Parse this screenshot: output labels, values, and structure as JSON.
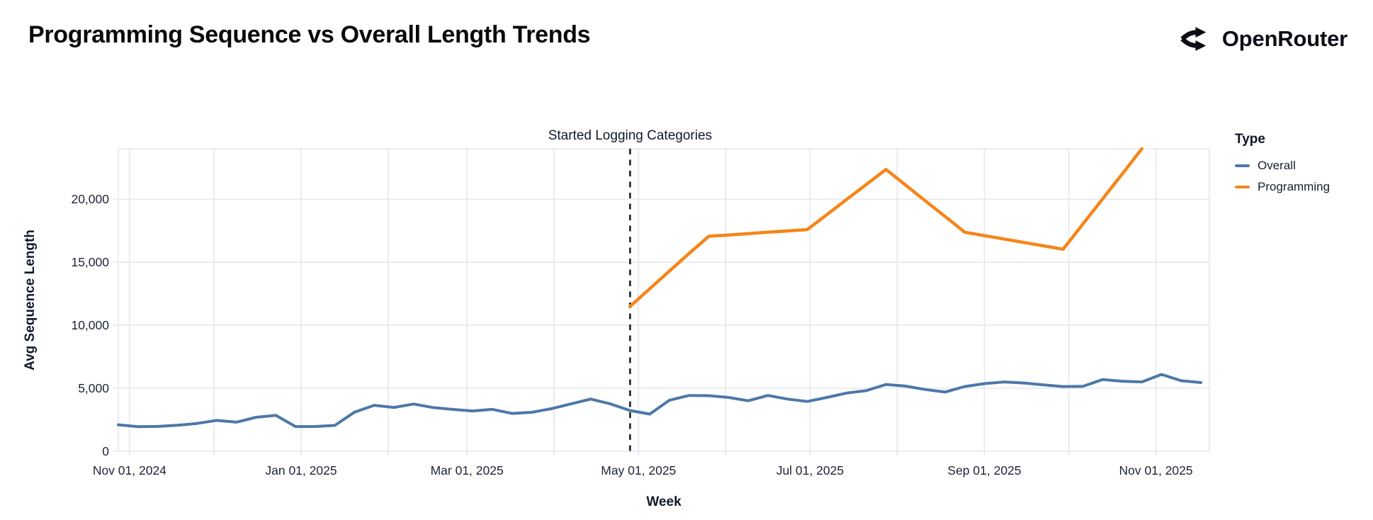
{
  "header": {
    "title": "Programming Sequence vs Overall Length Trends",
    "brand": "OpenRouter"
  },
  "colors": {
    "overall": "#4c78a8",
    "programming": "#f58518",
    "grid": "#e5e5ee",
    "axis_text": "#1d2433",
    "annotation_rule": "#14181f"
  },
  "chart_data": {
    "type": "line",
    "title": "Programming Sequence vs Overall Length Trends",
    "xlabel": "Week",
    "ylabel": "Avg Sequence Length",
    "ylim": [
      0,
      24000
    ],
    "y_ticks": [
      0,
      5000,
      10000,
      15000,
      20000
    ],
    "x_domain": [
      "Oct 28, 2024",
      "Nov 20, 2025"
    ],
    "x_month_gridlines": [
      "Nov 01, 2024",
      "Dec 01, 2024",
      "Jan 01, 2025",
      "Feb 01, 2025",
      "Mar 01, 2025",
      "Apr 01, 2025",
      "May 01, 2025",
      "Jun 01, 2025",
      "Jul 01, 2025",
      "Aug 01, 2025",
      "Sep 01, 2025",
      "Oct 01, 2025",
      "Nov 01, 2025"
    ],
    "x_tick_labels": [
      "Nov 01, 2024",
      "Jan 01, 2025",
      "Mar 01, 2025",
      "May 01, 2025",
      "Jul 01, 2025",
      "Sep 01, 2025",
      "Nov 01, 2025"
    ],
    "grid": true,
    "legend_position": "right",
    "annotation": {
      "text": "Started Logging Categories",
      "date": "Apr 28, 2025"
    },
    "legend": {
      "title": "Type",
      "items": [
        {
          "label": "Overall",
          "color": "#4c78a8"
        },
        {
          "label": "Programming",
          "color": "#f58518"
        }
      ]
    },
    "series": [
      {
        "name": "Overall",
        "color": "#4c78a8",
        "points": [
          [
            "Oct 28, 2024",
            2100
          ],
          [
            "Nov 4, 2024",
            1950
          ],
          [
            "Nov 11, 2024",
            1975
          ],
          [
            "Nov 18, 2024",
            2060
          ],
          [
            "Nov 25, 2024",
            2210
          ],
          [
            "Dec 2, 2024",
            2450
          ],
          [
            "Dec 9, 2024",
            2310
          ],
          [
            "Dec 16, 2024",
            2700
          ],
          [
            "Dec 23, 2024",
            2850
          ],
          [
            "Dec 30, 2024",
            1960
          ],
          [
            "Jan 6, 2025",
            1970
          ],
          [
            "Jan 13, 2025",
            2050
          ],
          [
            "Jan 20, 2025",
            3100
          ],
          [
            "Jan 27, 2025",
            3650
          ],
          [
            "Feb 3, 2025",
            3480
          ],
          [
            "Feb 10, 2025",
            3750
          ],
          [
            "Feb 17, 2025",
            3470
          ],
          [
            "Feb 24, 2025",
            3320
          ],
          [
            "Mar 3, 2025",
            3200
          ],
          [
            "Mar 10, 2025",
            3330
          ],
          [
            "Mar 17, 2025",
            3000
          ],
          [
            "Mar 24, 2025",
            3090
          ],
          [
            "Mar 31, 2025",
            3380
          ],
          [
            "Apr 7, 2025",
            3760
          ],
          [
            "Apr 14, 2025",
            4140
          ],
          [
            "Apr 21, 2025",
            3760
          ],
          [
            "Apr 28, 2025",
            3230
          ],
          [
            "May 5, 2025",
            2950
          ],
          [
            "May 12, 2025",
            4050
          ],
          [
            "May 19, 2025",
            4430
          ],
          [
            "May 26, 2025",
            4410
          ],
          [
            "Jun 2, 2025",
            4270
          ],
          [
            "Jun 9, 2025",
            4010
          ],
          [
            "Jun 16, 2025",
            4430
          ],
          [
            "Jun 23, 2025",
            4140
          ],
          [
            "Jun 30, 2025",
            3950
          ],
          [
            "Jul 7, 2025",
            4270
          ],
          [
            "Jul 14, 2025",
            4620
          ],
          [
            "Jul 21, 2025",
            4810
          ],
          [
            "Jul 28, 2025",
            5300
          ],
          [
            "Aug 4, 2025",
            5170
          ],
          [
            "Aug 11, 2025",
            4900
          ],
          [
            "Aug 18, 2025",
            4700
          ],
          [
            "Aug 25, 2025",
            5140
          ],
          [
            "Sep 1, 2025",
            5370
          ],
          [
            "Sep 8, 2025",
            5500
          ],
          [
            "Sep 15, 2025",
            5420
          ],
          [
            "Sep 22, 2025",
            5270
          ],
          [
            "Sep 29, 2025",
            5140
          ],
          [
            "Oct 6, 2025",
            5150
          ],
          [
            "Oct 13, 2025",
            5690
          ],
          [
            "Oct 20, 2025",
            5560
          ],
          [
            "Oct 27, 2025",
            5500
          ],
          [
            "Nov 3, 2025",
            6100
          ],
          [
            "Nov 10, 2025",
            5600
          ],
          [
            "Nov 17, 2025",
            5450
          ]
        ]
      },
      {
        "name": "Programming",
        "color": "#f58518",
        "points": [
          [
            "Apr 28, 2025",
            11500
          ],
          [
            "May 5, 2025",
            12900
          ],
          [
            "May 12, 2025",
            14300
          ],
          [
            "May 19, 2025",
            15700
          ],
          [
            "May 26, 2025",
            17060
          ],
          [
            "Jun 2, 2025",
            17160
          ],
          [
            "Jun 9, 2025",
            17270
          ],
          [
            "Jun 16, 2025",
            17380
          ],
          [
            "Jun 23, 2025",
            17480
          ],
          [
            "Jun 30, 2025",
            17590
          ],
          [
            "Jul 7, 2025",
            18780
          ],
          [
            "Jul 14, 2025",
            19980
          ],
          [
            "Jul 21, 2025",
            21170
          ],
          [
            "Jul 28, 2025",
            22360
          ],
          [
            "Aug 4, 2025",
            21120
          ],
          [
            "Aug 11, 2025",
            19870
          ],
          [
            "Aug 18, 2025",
            18630
          ],
          [
            "Aug 25, 2025",
            17380
          ],
          [
            "Sep 1, 2025",
            17110
          ],
          [
            "Sep 8, 2025",
            16840
          ],
          [
            "Sep 15, 2025",
            16570
          ],
          [
            "Sep 22, 2025",
            16300
          ],
          [
            "Sep 29, 2025",
            16030
          ],
          [
            "Oct 6, 2025",
            18020
          ],
          [
            "Oct 13, 2025",
            20010
          ],
          [
            "Oct 20, 2025",
            22000
          ],
          [
            "Oct 27, 2025",
            24000
          ]
        ]
      }
    ]
  }
}
